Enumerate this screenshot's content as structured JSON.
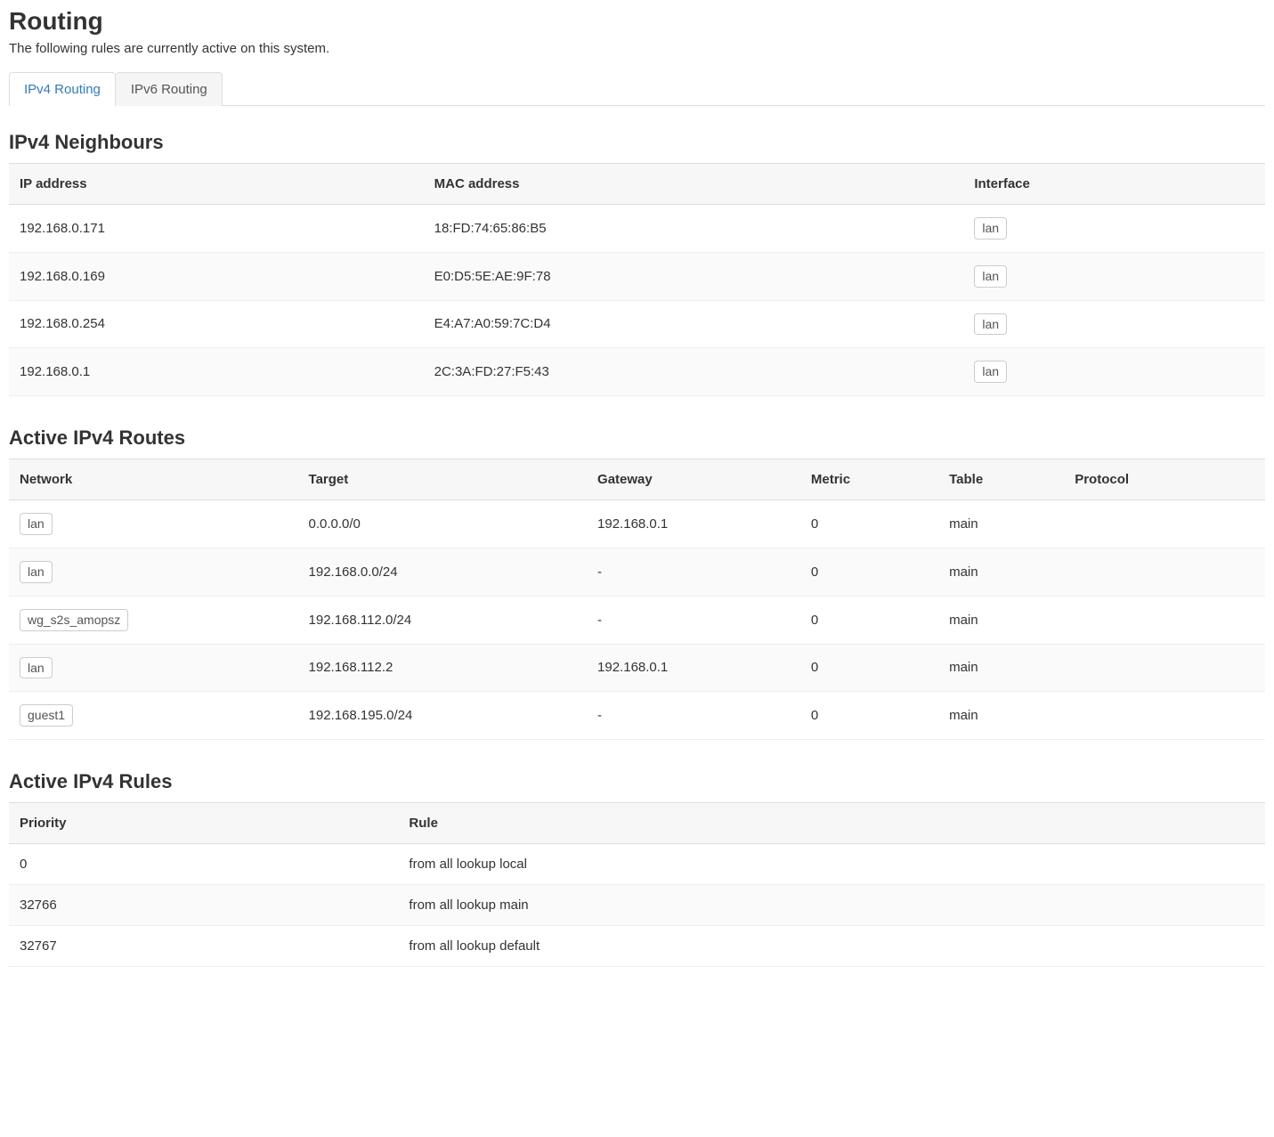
{
  "page": {
    "title": "Routing",
    "description": "The following rules are currently active on this system."
  },
  "tabs": [
    {
      "label": "IPv4 Routing",
      "active": true
    },
    {
      "label": "IPv6 Routing",
      "active": false
    }
  ],
  "neighbours": {
    "title": "IPv4 Neighbours",
    "columns": [
      "IP address",
      "MAC address",
      "Interface"
    ],
    "rows": [
      {
        "ip": "192.168.0.171",
        "mac": "18:FD:74:65:86:B5",
        "iface": "lan"
      },
      {
        "ip": "192.168.0.169",
        "mac": "E0:D5:5E:AE:9F:78",
        "iface": "lan"
      },
      {
        "ip": "192.168.0.254",
        "mac": "E4:A7:A0:59:7C:D4",
        "iface": "lan"
      },
      {
        "ip": "192.168.0.1",
        "mac": "2C:3A:FD:27:F5:43",
        "iface": "lan"
      }
    ]
  },
  "routes": {
    "title": "Active IPv4 Routes",
    "columns": [
      "Network",
      "Target",
      "Gateway",
      "Metric",
      "Table",
      "Protocol"
    ],
    "rows": [
      {
        "network": "lan",
        "target": "0.0.0.0/0",
        "gateway": "192.168.0.1",
        "metric": "0",
        "table": "main",
        "protocol": ""
      },
      {
        "network": "lan",
        "target": "192.168.0.0/24",
        "gateway": "-",
        "metric": "0",
        "table": "main",
        "protocol": ""
      },
      {
        "network": "wg_s2s_amopsz",
        "target": "192.168.112.0/24",
        "gateway": "-",
        "metric": "0",
        "table": "main",
        "protocol": ""
      },
      {
        "network": "lan",
        "target": "192.168.112.2",
        "gateway": "192.168.0.1",
        "metric": "0",
        "table": "main",
        "protocol": ""
      },
      {
        "network": "guest1",
        "target": "192.168.195.0/24",
        "gateway": "-",
        "metric": "0",
        "table": "main",
        "protocol": ""
      }
    ]
  },
  "rules": {
    "title": "Active IPv4 Rules",
    "columns": [
      "Priority",
      "Rule"
    ],
    "rows": [
      {
        "priority": "0",
        "rule": "from all lookup local"
      },
      {
        "priority": "32766",
        "rule": "from all lookup main"
      },
      {
        "priority": "32767",
        "rule": "from all lookup default"
      }
    ]
  },
  "colors": {
    "text": "#333333",
    "link": "#337ab7",
    "border": "#dddddd",
    "header_bg": "#f7f7f7",
    "row_alt_bg": "#fafafa",
    "badge_border": "#cccccc"
  }
}
